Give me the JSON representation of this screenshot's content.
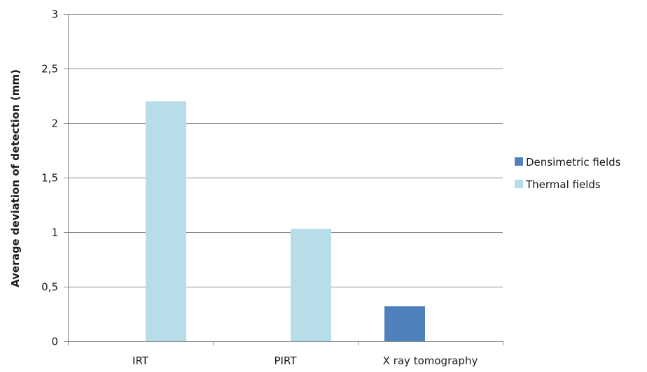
{
  "chart_data": {
    "type": "bar",
    "categories": [
      "IRT",
      "PIRT",
      "X ray tomography"
    ],
    "series": [
      {
        "name": "Densimetric fields",
        "color": "#4f81bd",
        "values": [
          null,
          null,
          0.32
        ]
      },
      {
        "name": "Thermal fields",
        "color": "#b7dde8",
        "values": [
          2.2,
          1.03,
          null
        ]
      }
    ],
    "ylabel": "Average deviation of detection (mm)",
    "xlabel": "",
    "ylim": [
      0,
      3
    ],
    "yticks": [
      "0",
      "0,5",
      "1",
      "1,5",
      "2",
      "2,5",
      "3"
    ],
    "ytick_values": [
      0,
      0.5,
      1,
      1.5,
      2,
      2.5,
      3
    ],
    "grid": true,
    "legend_position": "right"
  }
}
